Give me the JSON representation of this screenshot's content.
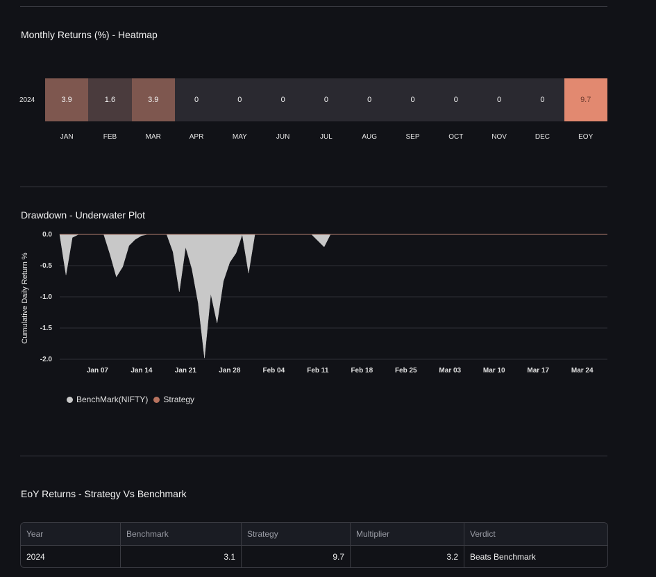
{
  "heatmap": {
    "title": "Monthly Returns (%) - Heatmap",
    "row_label": "2024",
    "months": [
      "JAN",
      "FEB",
      "MAR",
      "APR",
      "MAY",
      "JUN",
      "JUL",
      "AUG",
      "SEP",
      "OCT",
      "NOV",
      "DEC",
      "EOY"
    ],
    "values": [
      "3.9",
      "1.6",
      "3.9",
      "0",
      "0",
      "0",
      "0",
      "0",
      "0",
      "0",
      "0",
      "0",
      "9.7"
    ],
    "colors": [
      "#7e574f",
      "#4a3b3d",
      "#7e574f",
      "#2a2930",
      "#2a2930",
      "#2a2930",
      "#2a2930",
      "#2a2930",
      "#2a2930",
      "#2a2930",
      "#2a2930",
      "#2a2930",
      "#e28970"
    ]
  },
  "drawdown": {
    "title": "Drawdown - Underwater Plot",
    "ylabel": "Cumulative Daily Return %",
    "yticks": [
      "0.0",
      "-0.5",
      "-1.0",
      "-1.5",
      "-2.0"
    ],
    "xticks": [
      "Jan 07",
      "Jan 14",
      "Jan 21",
      "Jan 28",
      "Feb 04",
      "Feb 11",
      "Feb 18",
      "Feb 25",
      "Mar 03",
      "Mar 10",
      "Mar 17",
      "Mar 24"
    ],
    "legend": [
      {
        "label": "BenchMark(NIFTY)",
        "color": "#c8c8c8"
      },
      {
        "label": "Strategy",
        "color": "#b8735f"
      }
    ]
  },
  "chart_data": {
    "type": "area",
    "title": "Drawdown - Underwater Plot",
    "xlabel": "",
    "ylabel": "Cumulative Daily Return %",
    "ylim": [
      -2.0,
      0.0
    ],
    "xlim": [
      "2024-01-01",
      "2024-03-28"
    ],
    "grid": true,
    "legend_position": "bottom-left",
    "series": [
      {
        "name": "BenchMark(NIFTY)",
        "color": "#c8c8c8",
        "points": [
          [
            "2024-01-01",
            0.0
          ],
          [
            "2024-01-02",
            -0.65
          ],
          [
            "2024-01-03",
            -0.05
          ],
          [
            "2024-01-04",
            0.0
          ],
          [
            "2024-01-05",
            0.0
          ],
          [
            "2024-01-06",
            0.0
          ],
          [
            "2024-01-07",
            0.0
          ],
          [
            "2024-01-08",
            0.0
          ],
          [
            "2024-01-09",
            -0.32
          ],
          [
            "2024-01-10",
            -0.68
          ],
          [
            "2024-01-11",
            -0.52
          ],
          [
            "2024-01-12",
            -0.18
          ],
          [
            "2024-01-13",
            -0.08
          ],
          [
            "2024-01-14",
            -0.02
          ],
          [
            "2024-01-15",
            0.0
          ],
          [
            "2024-01-16",
            0.0
          ],
          [
            "2024-01-17",
            0.0
          ],
          [
            "2024-01-18",
            0.0
          ],
          [
            "2024-01-19",
            -0.28
          ],
          [
            "2024-01-20",
            -0.92
          ],
          [
            "2024-01-21",
            -0.2
          ],
          [
            "2024-01-22",
            -0.55
          ],
          [
            "2024-01-23",
            -1.1
          ],
          [
            "2024-01-24",
            -1.98
          ],
          [
            "2024-01-25",
            -0.95
          ],
          [
            "2024-01-26",
            -1.42
          ],
          [
            "2024-01-27",
            -0.75
          ],
          [
            "2024-01-28",
            -0.45
          ],
          [
            "2024-01-29",
            -0.3
          ],
          [
            "2024-01-30",
            0.0
          ],
          [
            "2024-01-31",
            -0.62
          ],
          [
            "2024-02-01",
            0.0
          ],
          [
            "2024-02-02",
            0.0
          ],
          [
            "2024-02-10",
            0.0
          ],
          [
            "2024-02-12",
            -0.2
          ],
          [
            "2024-02-13",
            0.0
          ],
          [
            "2024-03-28",
            0.0
          ]
        ]
      },
      {
        "name": "Strategy",
        "color": "#b8735f",
        "points": [
          [
            "2024-01-01",
            0.0
          ],
          [
            "2024-03-28",
            0.0
          ]
        ]
      }
    ]
  },
  "eoy": {
    "title": "EoY Returns - Strategy Vs Benchmark",
    "headers": [
      "Year",
      "Benchmark",
      "Strategy",
      "Multiplier",
      "Verdict"
    ],
    "rows": [
      [
        "2024",
        "3.1",
        "9.7",
        "3.2",
        "Beats Benchmark"
      ]
    ]
  }
}
